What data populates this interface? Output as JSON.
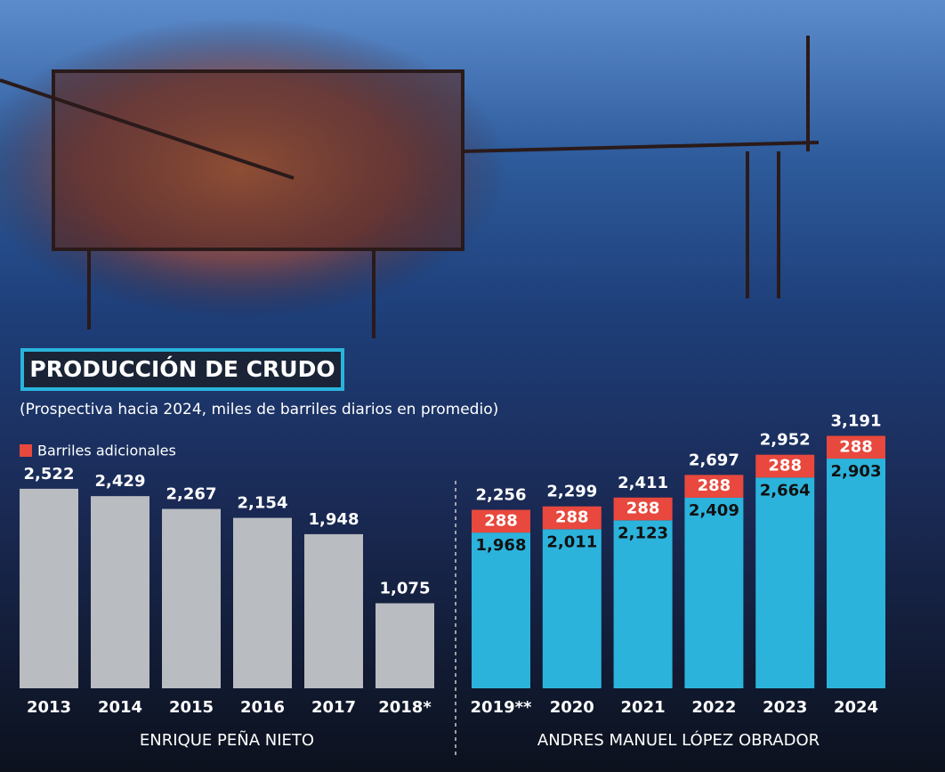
{
  "chart_data": {
    "type": "stacked-bar",
    "title": "PRODUCCIÓN DE CRUDO",
    "subtitle": "(Prospectiva hacia 2024, miles de barriles diarios en promedio)",
    "categories": [
      "2013",
      "2014",
      "2015",
      "2016",
      "2017",
      "2018*",
      "2019**",
      "2020",
      "2021",
      "2022",
      "2023",
      "2024"
    ],
    "groups": [
      "ENRIQUE PEÑA NIETO",
      "ANDRES MANUEL LÓPEZ OBRADOR"
    ],
    "series": [
      {
        "colors": [
          "#b9bcc0",
          "#2bb3dc"
        ],
        "values": [
          2522,
          2429,
          2267,
          2154,
          1948,
          1075,
          1968,
          2011,
          2123,
          2409,
          2664,
          2903
        ],
        "value_labels": [
          "2,522",
          "2,429",
          "2,267",
          "2,154",
          "1,948",
          "1,075",
          "1,968",
          "2,011",
          "2,123",
          "2,409",
          "2,664",
          "2,903"
        ]
      },
      {
        "name": "Barriles adicionales",
        "color": "#e8483d",
        "values": [
          null,
          null,
          null,
          null,
          null,
          null,
          288,
          288,
          288,
          288,
          288,
          288
        ]
      }
    ],
    "totals": [
      null,
      null,
      null,
      null,
      null,
      null,
      2256,
      2299,
      2411,
      2697,
      2952,
      3191
    ],
    "total_labels": [
      null,
      null,
      null,
      null,
      null,
      null,
      "2,256",
      "2,299",
      "2,411",
      "2,697",
      "2,952",
      "3,191"
    ],
    "ylim": [
      0,
      3500
    ]
  }
}
